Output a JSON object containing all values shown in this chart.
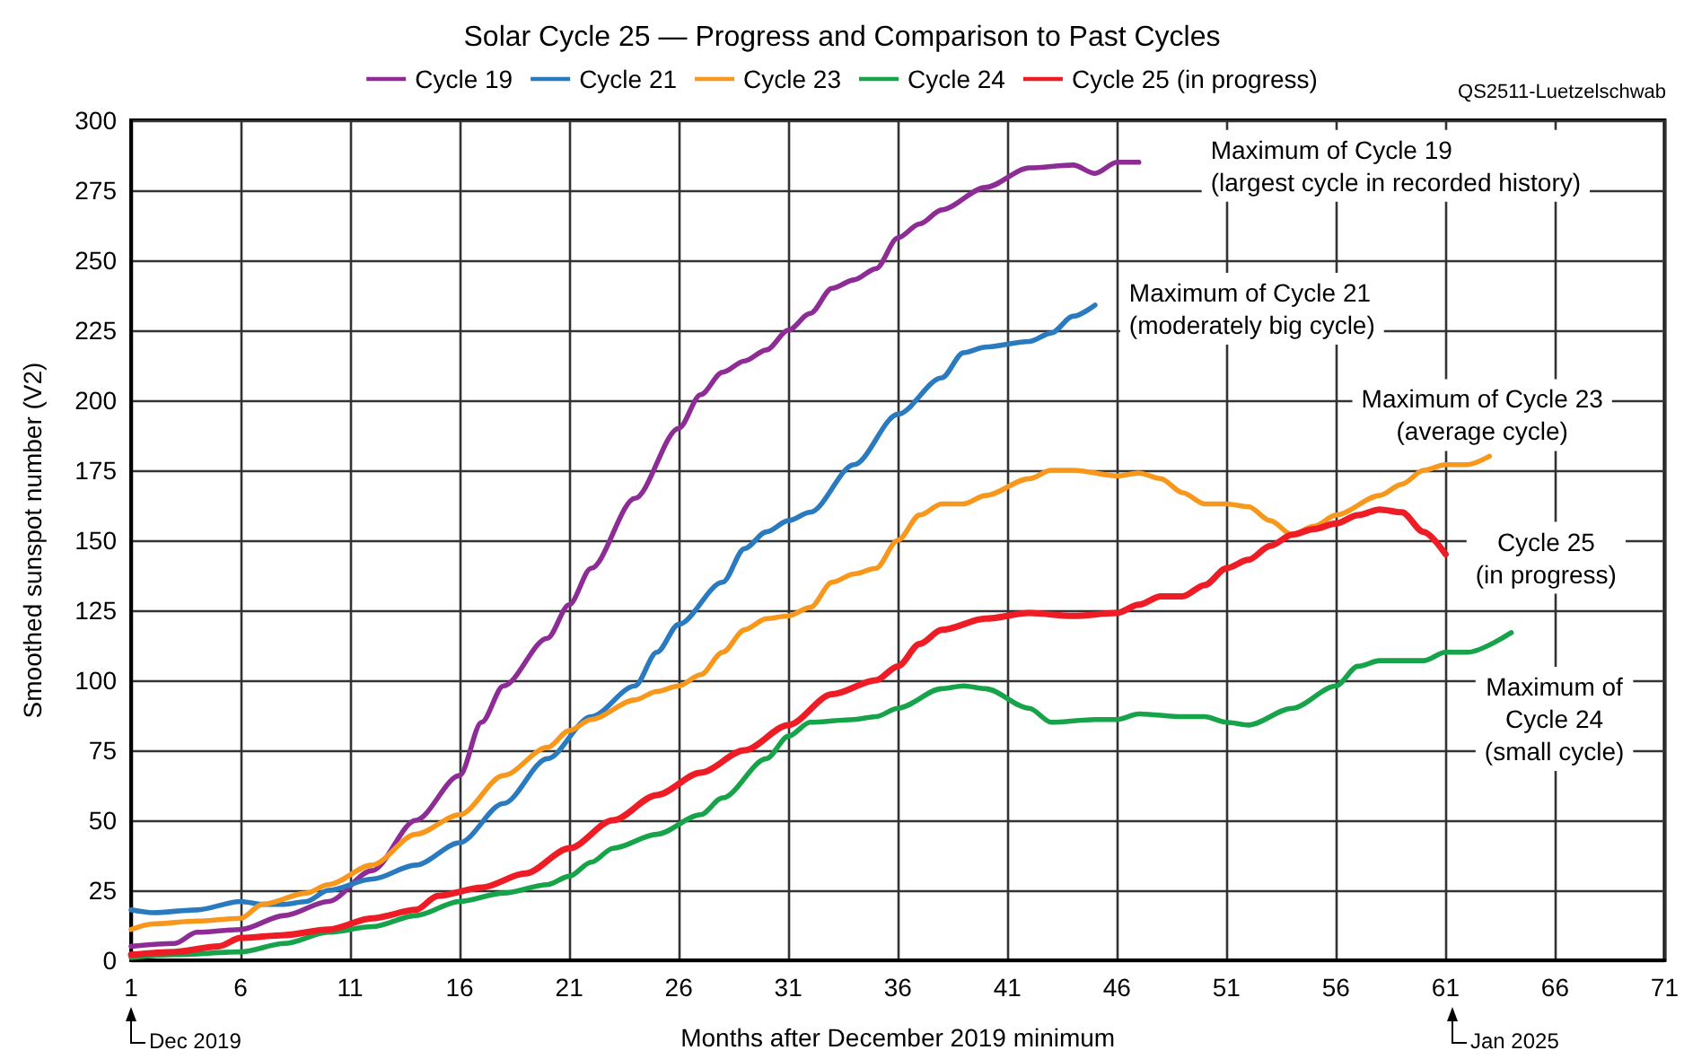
{
  "chart_data": {
    "type": "line",
    "title": "Solar Cycle 25 — Progress and Comparison to Past Cycles",
    "xlabel": "Months after December 2019 minimum",
    "ylabel": "Smoothed sunspot number (V2)",
    "xlim": [
      1,
      71
    ],
    "xticks": [
      1,
      6,
      11,
      16,
      21,
      26,
      31,
      36,
      41,
      46,
      51,
      56,
      61,
      66,
      71
    ],
    "ylim": [
      0,
      300
    ],
    "yticks": [
      0,
      25,
      50,
      75,
      100,
      125,
      150,
      175,
      200,
      225,
      250,
      275,
      300
    ],
    "grid": true,
    "legend": "top",
    "marker": "none",
    "line_style": "solid",
    "series": [
      {
        "name": "Cycle 19",
        "color": "#8e2c96",
        "x": [
          1,
          3,
          4,
          6,
          8,
          10,
          12,
          14,
          16,
          17,
          18,
          20,
          21,
          22,
          24,
          26,
          27,
          28,
          29,
          30,
          31,
          32,
          33,
          34,
          35,
          36,
          37,
          38,
          40,
          42,
          44,
          45,
          46,
          47
        ],
        "values": [
          5,
          6,
          10,
          11,
          16,
          21,
          32,
          50,
          66,
          85,
          98,
          115,
          127,
          140,
          165,
          190,
          202,
          210,
          214,
          218,
          225,
          231,
          240,
          243,
          247,
          258,
          263,
          268,
          276,
          283,
          284,
          281,
          285,
          285
        ]
      },
      {
        "name": "Cycle 21",
        "color": "#2a7abf",
        "x": [
          1,
          2,
          4,
          6,
          7,
          8,
          9,
          10,
          12,
          14,
          16,
          18,
          20,
          22,
          24,
          25,
          26,
          28,
          29,
          30,
          31,
          32,
          34,
          36,
          38,
          39,
          40,
          42,
          43,
          44,
          45
        ],
        "values": [
          18,
          17,
          18,
          21,
          20,
          20,
          21,
          25,
          29,
          34,
          42,
          56,
          72,
          87,
          98,
          110,
          120,
          135,
          147,
          153,
          157,
          160,
          177,
          195,
          208,
          217,
          219,
          221,
          224,
          230,
          234
        ]
      },
      {
        "name": "Cycle 23",
        "color": "#f7981d",
        "x": [
          1,
          2,
          4,
          6,
          7,
          9,
          10,
          12,
          14,
          16,
          18,
          20,
          21,
          22,
          24,
          25,
          26,
          27,
          28,
          29,
          30,
          31,
          32,
          33,
          34,
          35,
          36,
          37,
          38,
          39,
          40,
          42,
          43,
          44,
          46,
          47,
          48,
          49,
          50,
          51,
          52,
          53,
          54,
          55,
          56,
          58,
          59,
          60,
          61,
          62,
          63
        ],
        "values": [
          11,
          13,
          14,
          15,
          20,
          24,
          27,
          34,
          45,
          52,
          66,
          76,
          82,
          86,
          93,
          96,
          98,
          102,
          110,
          118,
          122,
          123,
          126,
          135,
          138,
          140,
          150,
          159,
          163,
          163,
          166,
          172,
          175,
          175,
          173,
          174,
          172,
          167,
          163,
          163,
          162,
          157,
          152,
          155,
          159,
          166,
          170,
          175,
          177,
          177,
          180
        ]
      },
      {
        "name": "Cycle 24",
        "color": "#17a34a",
        "x": [
          1,
          3,
          6,
          8,
          10,
          12,
          14,
          16,
          18,
          20,
          21,
          22,
          23,
          25,
          27,
          28,
          30,
          31,
          32,
          34,
          35,
          36,
          38,
          39,
          40,
          42,
          43,
          45,
          46,
          47,
          49,
          50,
          51,
          52,
          54,
          56,
          57,
          58,
          60,
          61,
          62,
          64
        ],
        "values": [
          1,
          2,
          3,
          6,
          10,
          12,
          16,
          21,
          24,
          27,
          30,
          35,
          40,
          45,
          52,
          58,
          72,
          80,
          85,
          86,
          87,
          90,
          97,
          98,
          97,
          90,
          85,
          86,
          86,
          88,
          87,
          87,
          85,
          84,
          90,
          98,
          105,
          107,
          107,
          110,
          110,
          117
        ]
      },
      {
        "name": "Cycle 25 (in progress)",
        "color": "#ee1c25",
        "x": [
          1,
          3,
          5,
          6,
          8,
          10,
          12,
          14,
          15,
          17,
          19,
          21,
          23,
          25,
          27,
          29,
          31,
          33,
          35,
          36,
          37,
          38,
          40,
          42,
          44,
          46,
          47,
          48,
          49,
          50,
          51,
          52,
          53,
          54,
          55,
          56,
          57,
          58,
          59,
          60,
          61
        ],
        "values": [
          2,
          3,
          5,
          8,
          9,
          11,
          15,
          18,
          23,
          26,
          31,
          40,
          50,
          59,
          67,
          75,
          84,
          95,
          100,
          105,
          113,
          118,
          122,
          124,
          123,
          124,
          127,
          130,
          130,
          134,
          140,
          143,
          148,
          152,
          154,
          156,
          159,
          161,
          160,
          153,
          145
        ]
      }
    ],
    "annotations": [
      {
        "text": "Maximum of Cycle 19\n(largest cycle in recorded history)",
        "x": 47,
        "y": 285
      },
      {
        "text": "Maximum of Cycle 21\n(moderately big cycle)",
        "x": 45,
        "y": 234
      },
      {
        "text": "Maximum of Cycle 23\n(average cycle)",
        "x": 63,
        "y": 180
      },
      {
        "text": "Cycle 25\n(in progress)",
        "x": 61,
        "y": 145
      },
      {
        "text": "Maximum of\nCycle 24\n(small cycle)",
        "x": 64,
        "y": 117
      },
      "Dec 2019",
      "Jan 2025",
      "QS2511-Luetzelschwab"
    ]
  }
}
